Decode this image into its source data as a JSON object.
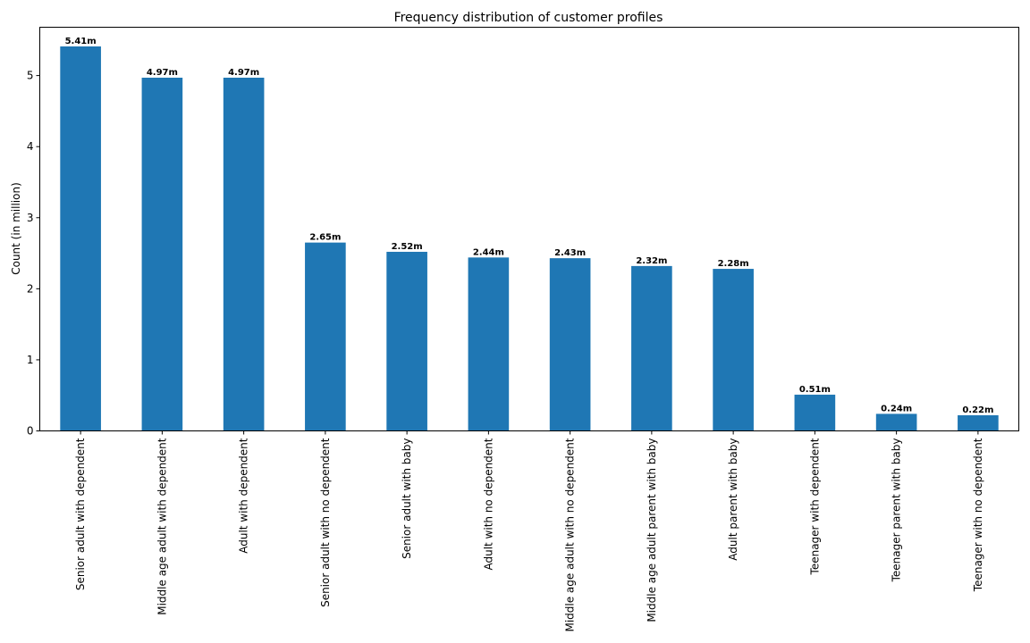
{
  "chart_data": {
    "type": "bar",
    "title": "Frequency distribution of customer profiles",
    "xlabel": "",
    "ylabel": "Count (in million)",
    "ylim": [
      0,
      5.68
    ],
    "yticks": [
      0,
      1,
      2,
      3,
      4,
      5
    ],
    "grid": false,
    "legend": "none",
    "color": "#1f77b4",
    "categories": [
      "Senior adult with dependent",
      "Middle age adult with dependent",
      "Adult with dependent",
      "Senior adult with no dependent",
      "Senior adult with baby",
      "Adult with no dependent",
      "Middle age adult with no dependent",
      "Middle age adult parent with baby",
      "Adult parent with baby",
      "Teenager with dependent",
      "Teenager parent with baby",
      "Teenager with no dependent"
    ],
    "values": [
      5.41,
      4.97,
      4.97,
      2.65,
      2.52,
      2.44,
      2.43,
      2.32,
      2.28,
      0.51,
      0.24,
      0.22
    ],
    "data_labels": [
      "5.41m",
      "4.97m",
      "4.97m",
      "2.65m",
      "2.52m",
      "2.44m",
      "2.43m",
      "2.32m",
      "2.28m",
      "0.51m",
      "0.24m",
      "0.22m"
    ]
  }
}
